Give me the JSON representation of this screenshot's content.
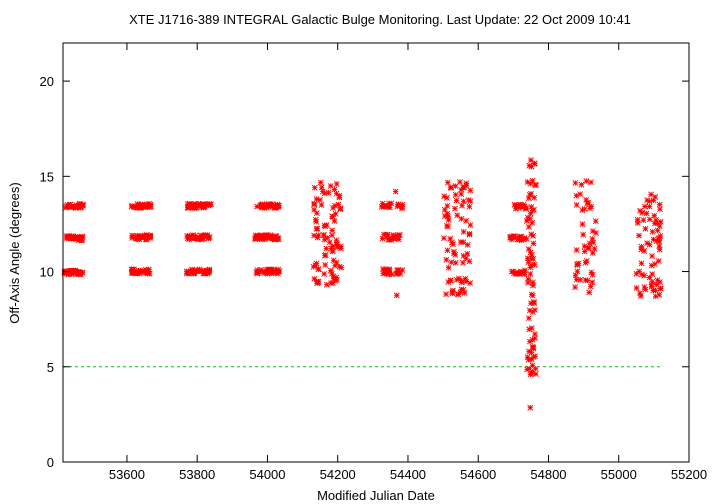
{
  "chart_data": {
    "type": "scatter",
    "title": "XTE J1716-389   INTEGRAL Galactic Bulge Monitoring.  Last Update: 22 Oct 2009 10:41",
    "xlabel": "Modified Julian Date",
    "ylabel": "Off-Axis Angle (degrees)",
    "xlim": [
      53418,
      55200
    ],
    "ylim": [
      0,
      22
    ],
    "xticks": [
      53600,
      53800,
      54000,
      54200,
      54400,
      54600,
      54800,
      55000,
      55200
    ],
    "yticks": [
      0,
      5,
      10,
      15,
      20
    ],
    "grid": false,
    "colors": {
      "points": "#ff0000",
      "reference_line": "#00cc00"
    },
    "reference_line": {
      "y": 5,
      "x_range": [
        53418,
        55120
      ],
      "style": "dashed"
    },
    "observation_seasons": [
      {
        "x_range": [
          53422,
          53475
        ],
        "y_bands": [
          9.95,
          11.75,
          13.45
        ],
        "spread": 0.12,
        "count": 100
      },
      {
        "x_range": [
          53613,
          53668
        ],
        "y_bands": [
          10.0,
          11.8,
          13.45
        ],
        "spread": 0.12,
        "count": 90
      },
      {
        "x_range": [
          53770,
          53840
        ],
        "y_bands": [
          10.0,
          11.8,
          13.45
        ],
        "spread": 0.12,
        "count": 110
      },
      {
        "x_range": [
          53965,
          54035
        ],
        "y_bands": [
          10.0,
          11.8,
          13.45
        ],
        "spread": 0.12,
        "count": 110
      },
      {
        "x_range": [
          54130,
          54210
        ],
        "y_range": [
          9.3,
          14.7
        ],
        "count": 85
      },
      {
        "x_range": [
          54325,
          54385
        ],
        "y_bands": [
          10.0,
          11.8,
          13.45
        ],
        "spread": 0.15,
        "count": 60
      },
      {
        "x_range": [
          54500,
          54580
        ],
        "y_range": [
          8.8,
          14.7
        ],
        "count": 75
      },
      {
        "x_range": [
          54690,
          54740
        ],
        "y_bands": [
          9.95,
          11.75,
          13.4
        ],
        "spread": 0.12,
        "count": 45
      },
      {
        "x_range": [
          54738,
          54765
        ],
        "y_range": [
          4.6,
          15.8
        ],
        "count": 70
      },
      {
        "x_range": [
          54875,
          54935
        ],
        "y_range": [
          8.9,
          14.8
        ],
        "count": 45
      },
      {
        "x_range": [
          55050,
          55120
        ],
        "y_range": [
          8.7,
          14.0
        ],
        "count": 65
      }
    ],
    "outlier_points": [
      [
        54748,
        2.85
      ],
      [
        54750,
        15.85
      ],
      [
        54749,
        4.6
      ],
      [
        54751,
        4.65
      ],
      [
        54752,
        5.4
      ],
      [
        54365,
        14.2
      ],
      [
        54368,
        8.75
      ],
      [
        54543,
        8.8
      ],
      [
        54548,
        14.7
      ],
      [
        54908,
        14.75
      ],
      [
        55092,
        14.05
      ],
      [
        55105,
        8.7
      ]
    ]
  }
}
